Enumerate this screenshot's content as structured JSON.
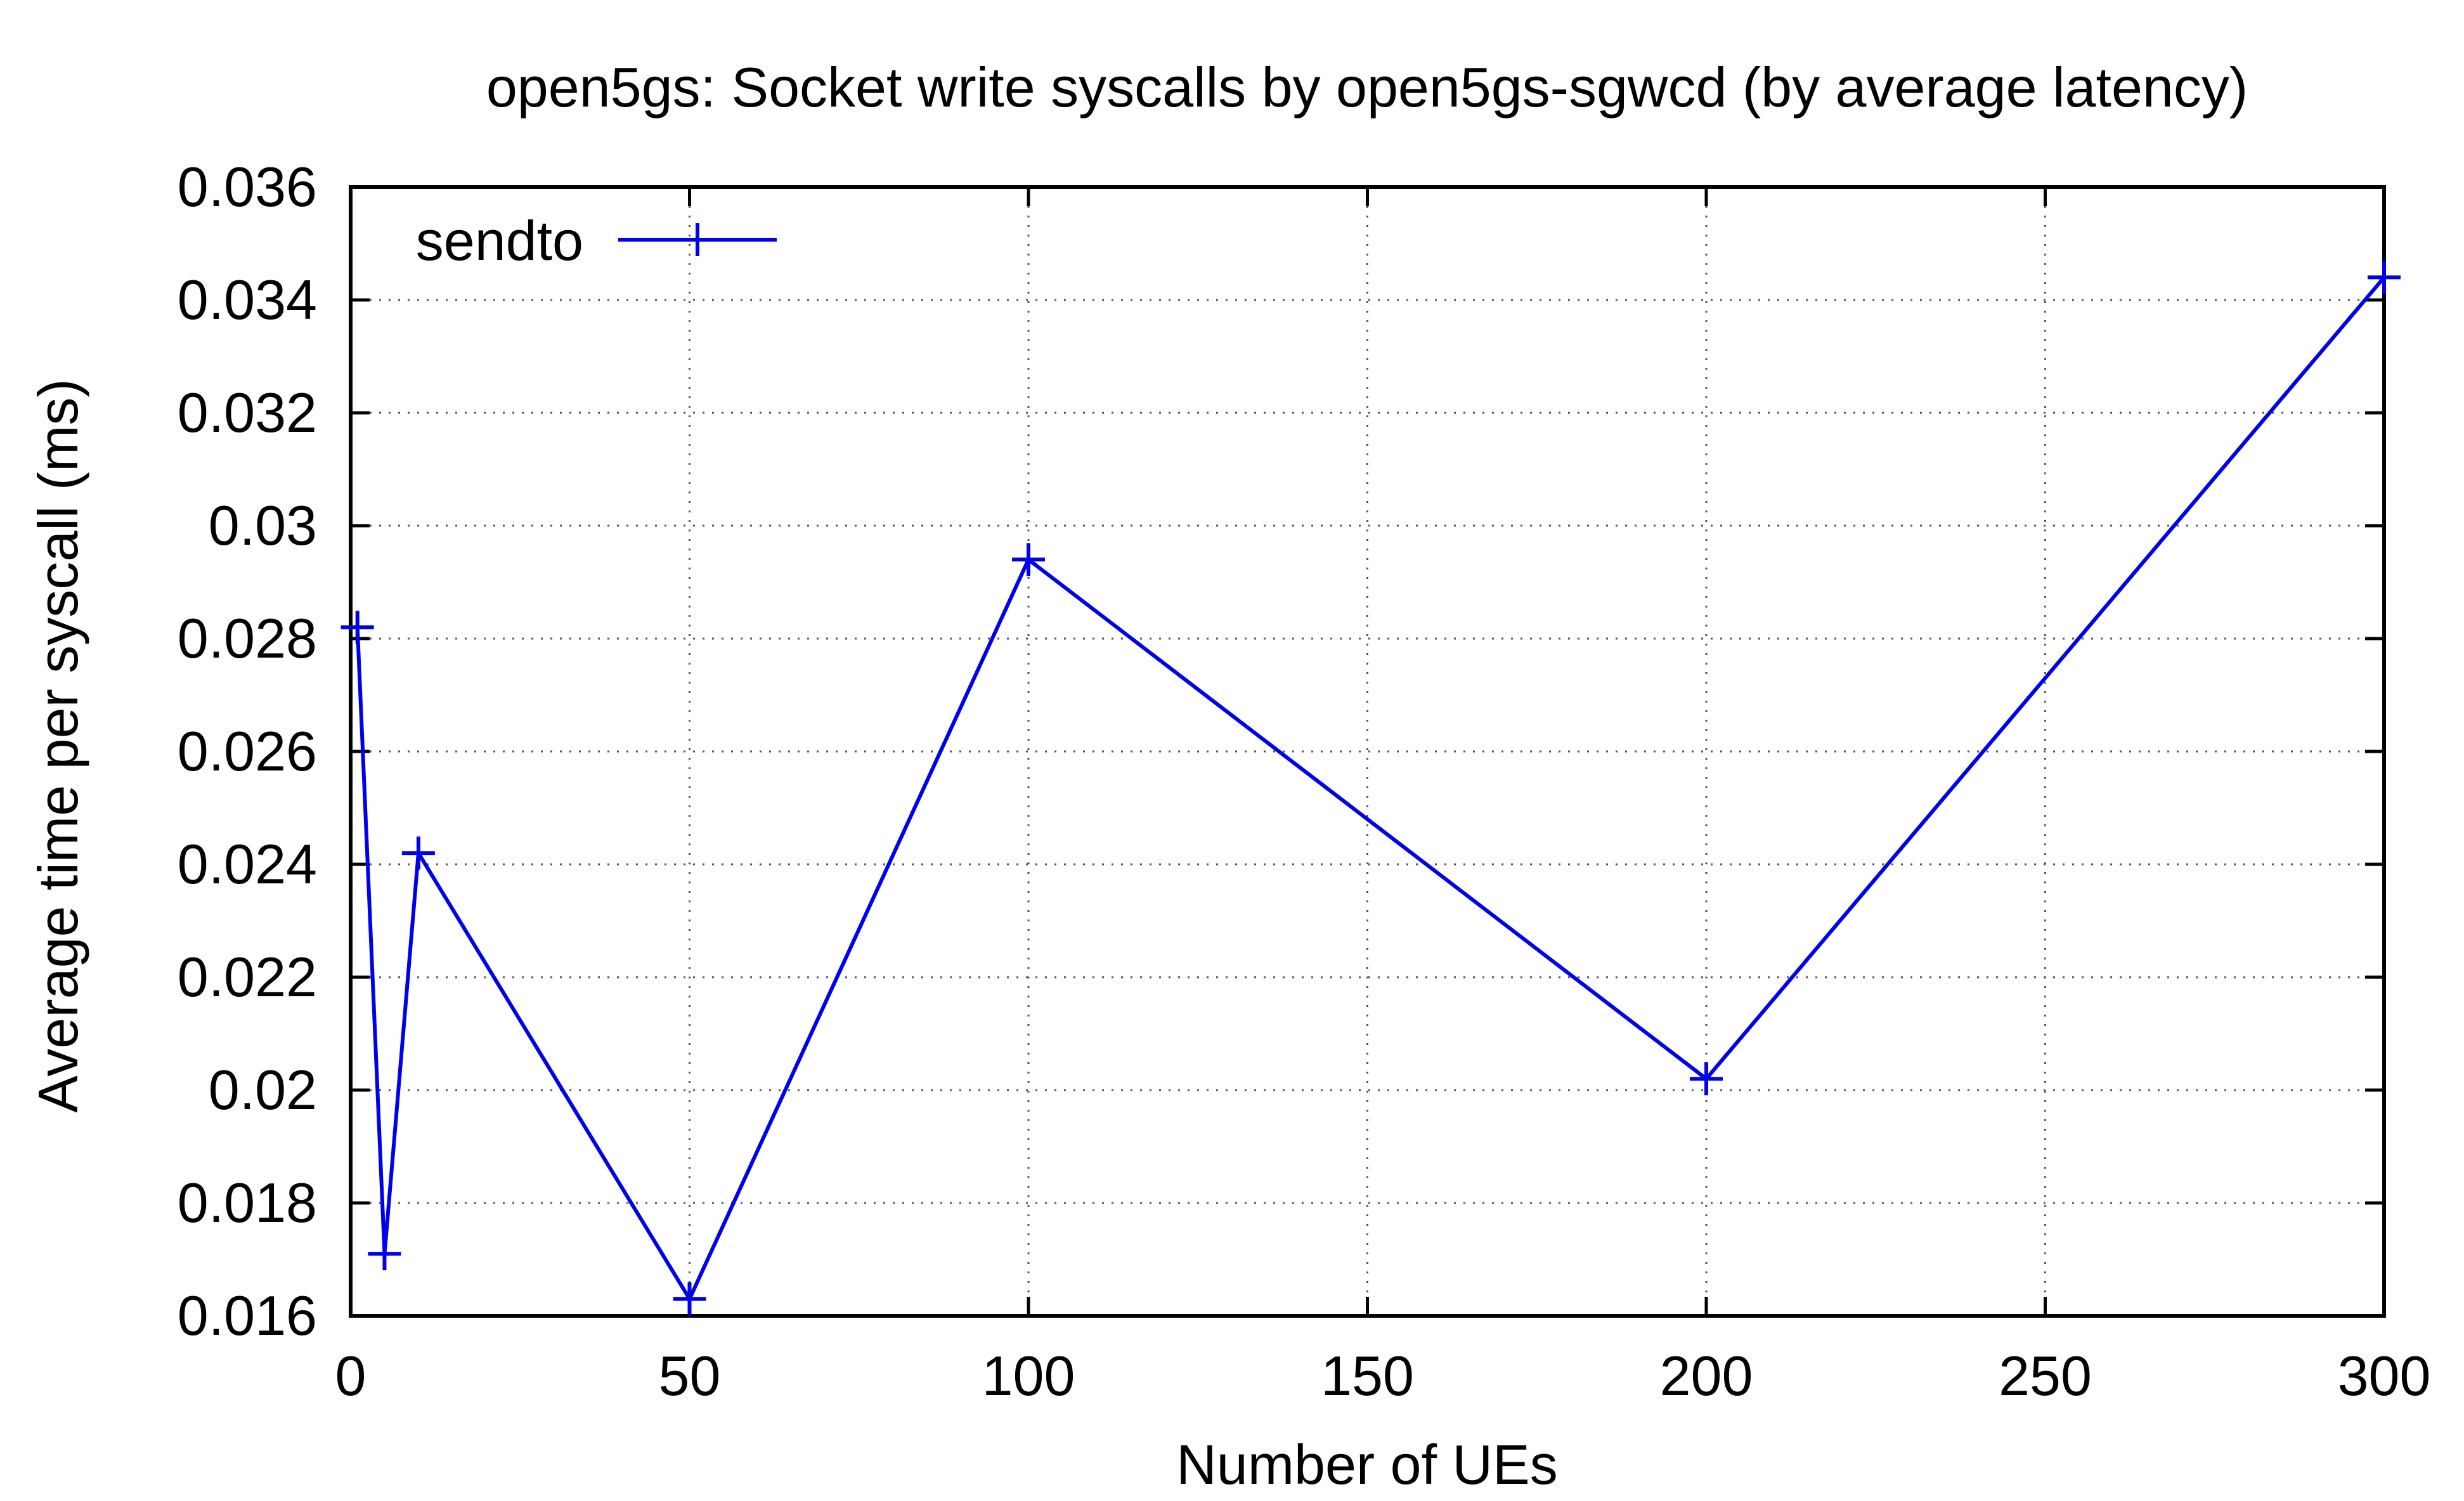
{
  "chart_data": {
    "type": "line",
    "title": "open5gs: Socket write syscalls by open5gs-sgwcd (by average latency)",
    "xlabel": "Number of UEs",
    "ylabel": "Average time per syscall (ms)",
    "xlim": [
      0,
      300
    ],
    "ylim": [
      0.016,
      0.036
    ],
    "xticks": [
      0,
      50,
      100,
      150,
      200,
      250,
      300
    ],
    "xtick_labels": [
      "0",
      "50",
      "100",
      "150",
      "200",
      "250",
      "300"
    ],
    "yticks": [
      0.016,
      0.018,
      0.02,
      0.022,
      0.024,
      0.026,
      0.028,
      0.03,
      0.032,
      0.034,
      0.036
    ],
    "ytick_labels": [
      "0.016",
      "0.018",
      "0.02",
      "0.022",
      "0.024",
      "0.026",
      "0.028",
      "0.03",
      "0.032",
      "0.034",
      "0.036"
    ],
    "grid": true,
    "legend_position": "top-left",
    "series": [
      {
        "name": "sendto",
        "color": "#0000ee",
        "marker": "plus",
        "x": [
          1,
          5,
          10,
          50,
          100,
          200,
          300
        ],
        "y": [
          0.0282,
          0.0171,
          0.0242,
          0.0163,
          0.0294,
          0.0202,
          0.0344
        ]
      }
    ]
  }
}
